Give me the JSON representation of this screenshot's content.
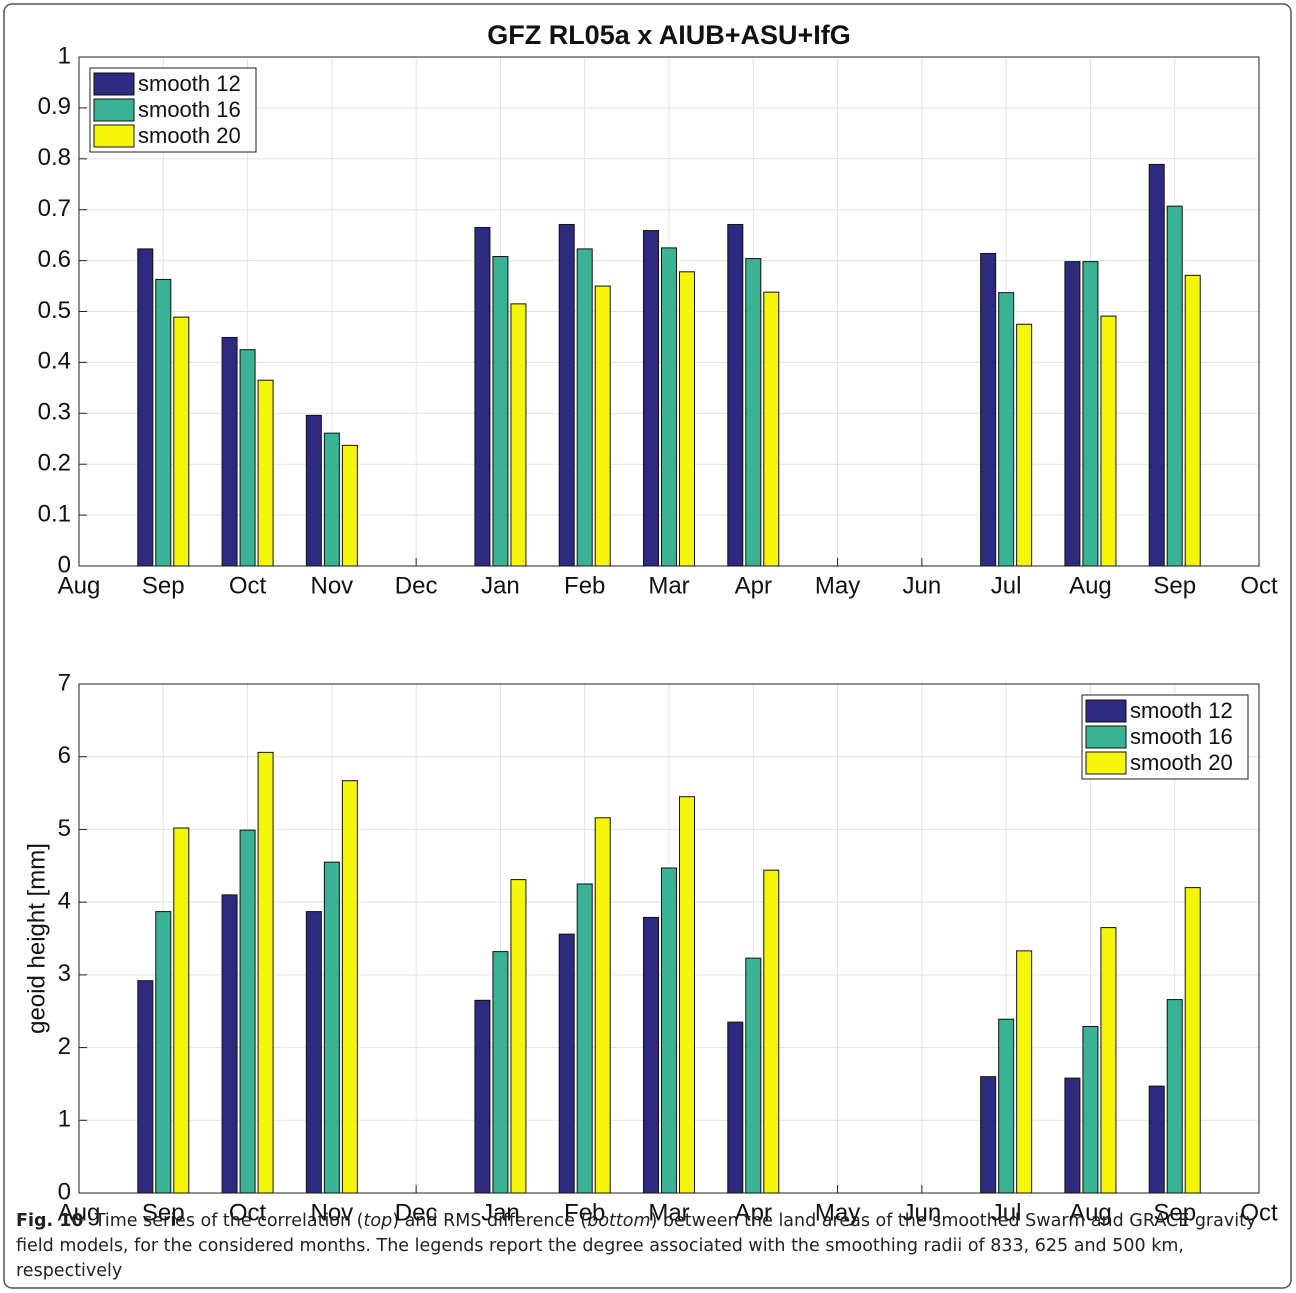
{
  "chart_data": [
    {
      "type": "bar",
      "title": "GFZ RL05a x AIUB+ASU+IfG",
      "categories": [
        "Aug",
        "Sep",
        "Oct",
        "Nov",
        "Dec",
        "Jan",
        "Feb",
        "Mar",
        "Apr",
        "May",
        "Jun",
        "Jul",
        "Aug",
        "Sep",
        "Oct"
      ],
      "series": [
        {
          "name": "smooth 12",
          "color": "#2e2a80",
          "values": [
            null,
            0.623,
            0.449,
            0.296,
            null,
            0.665,
            0.671,
            0.659,
            0.671,
            null,
            null,
            0.614,
            0.598,
            0.789,
            null
          ]
        },
        {
          "name": "smooth 16",
          "color": "#3ab394",
          "values": [
            null,
            0.563,
            0.425,
            0.261,
            null,
            0.608,
            0.623,
            0.625,
            0.604,
            null,
            null,
            0.537,
            0.598,
            0.707,
            null
          ]
        },
        {
          "name": "smooth 20",
          "color": "#f5f50a",
          "values": [
            null,
            0.489,
            0.365,
            0.237,
            null,
            0.515,
            0.55,
            0.578,
            0.538,
            null,
            null,
            0.475,
            0.491,
            0.571,
            null
          ]
        }
      ],
      "ylim": [
        0,
        1
      ],
      "yticks": [
        0,
        0.1,
        0.2,
        0.3,
        0.4,
        0.5,
        0.6,
        0.7,
        0.8,
        0.9,
        1
      ],
      "grid": true,
      "legend": "upper left"
    },
    {
      "type": "bar",
      "ylabel": "geoid height [mm]",
      "categories": [
        "Aug",
        "Sep",
        "Oct",
        "Nov",
        "Dec",
        "Jan",
        "Feb",
        "Mar",
        "Apr",
        "May",
        "Jun",
        "Jul",
        "Aug",
        "Sep",
        "Oct"
      ],
      "series": [
        {
          "name": "smooth 12",
          "color": "#2e2a80",
          "values": [
            null,
            2.92,
            4.1,
            3.87,
            null,
            2.65,
            3.56,
            3.79,
            2.35,
            null,
            null,
            1.6,
            1.58,
            1.47,
            null
          ]
        },
        {
          "name": "smooth 16",
          "color": "#3ab394",
          "values": [
            null,
            3.87,
            4.99,
            4.55,
            null,
            3.32,
            4.25,
            4.47,
            3.23,
            null,
            null,
            2.39,
            2.29,
            2.66,
            null
          ]
        },
        {
          "name": "smooth 20",
          "color": "#f5f50a",
          "values": [
            null,
            5.02,
            6.06,
            5.67,
            null,
            4.31,
            5.16,
            5.45,
            4.44,
            null,
            null,
            3.33,
            3.65,
            4.2,
            null
          ]
        }
      ],
      "ylim": [
        0,
        7
      ],
      "yticks": [
        0,
        1,
        2,
        3,
        4,
        5,
        6,
        7
      ],
      "grid": true,
      "legend": "upper right"
    }
  ],
  "caption": {
    "label": "Fig. 10",
    "parts": [
      "Time series of the correlation (",
      "top",
      ") and RMS difference (",
      "bottom",
      ") between the land areas of the smoothed Swarm and GRACE gravity field models, for the considered months. The legends report the degree associated with the smoothing radii of 833, 625 and 500 km, respectively"
    ]
  }
}
